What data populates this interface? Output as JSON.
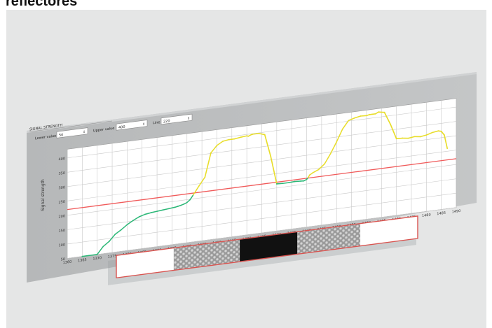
{
  "page": {
    "title": "reflectores"
  },
  "panel": {
    "title": "SIGNAL STRENGTH",
    "lower_label": "Lower value",
    "lower_value": "50",
    "upper_label": "Upper value",
    "upper_value": "400",
    "line_label": "Line",
    "line_value": "220"
  },
  "colors": {
    "below_line": "#2db878",
    "above_line": "#e8dd2a",
    "threshold": "#f05a5a",
    "panel": "#b9bbbc",
    "plot_bg": "#ffffff",
    "grid": "#c9c9c9",
    "strip_border": "#d9534f",
    "strip_black": "#111111"
  },
  "chart_data": {
    "type": "line",
    "ylabel": "Signal strength",
    "xlabel": "",
    "x_ticks": [
      1360,
      1365,
      1370,
      1375,
      1380,
      1385,
      1390,
      1395,
      1400,
      1405,
      1410,
      1415,
      1420,
      1425,
      1430,
      1435,
      1440,
      1445,
      1450,
      1455,
      1460,
      1465,
      1470,
      1475,
      1480,
      1485,
      1490
    ],
    "y_ticks": [
      50,
      100,
      150,
      200,
      250,
      300,
      350,
      400
    ],
    "xlim": [
      1360,
      1490
    ],
    "ylim": [
      50,
      430
    ],
    "threshold": 220,
    "series": [
      {
        "x": [
          1365,
          1370,
          1372,
          1374,
          1376,
          1378,
          1380,
          1382,
          1384,
          1386,
          1388,
          1390,
          1392,
          1394,
          1396,
          1397,
          1398,
          1399,
          1400,
          1401,
          1402,
          1404,
          1406,
          1408,
          1410,
          1412,
          1414,
          1416,
          1418,
          1420,
          1420.5,
          1421,
          1421.5,
          1422,
          1424,
          1426,
          1428,
          1430,
          1432,
          1434,
          1436,
          1438,
          1439,
          1440,
          1440.5,
          1441,
          1442,
          1444,
          1446,
          1448,
          1450,
          1452,
          1454,
          1456,
          1458,
          1460,
          1461,
          1462,
          1463,
          1464,
          1466,
          1468,
          1470,
          1472,
          1474,
          1476,
          1478,
          1480,
          1482,
          1484,
          1485,
          1486,
          1487
        ],
        "y": [
          50,
          50,
          75,
          90,
          112,
          125,
          140,
          152,
          162,
          168,
          171,
          173,
          175,
          177,
          179,
          181,
          183,
          186,
          190,
          198,
          212,
          242,
          270,
          352,
          375,
          387,
          390,
          390,
          393,
          395,
          393,
          395,
          397,
          398,
          398,
          391,
          312,
          214,
          213,
          213,
          214,
          213,
          212,
          216,
          222,
          230,
          236,
          245,
          262,
          295,
          333,
          375,
          402,
          408,
          412,
          411,
          413,
          413,
          413,
          418,
          414,
          370,
          317,
          316,
          313,
          316,
          313,
          316,
          322,
          325,
          322,
          308,
          260
        ]
      }
    ]
  },
  "strip": {
    "segments": [
      {
        "type": "white",
        "fraction": 0.2
      },
      {
        "type": "hex",
        "fraction": 0.23
      },
      {
        "type": "black",
        "fraction": 0.2
      },
      {
        "type": "hex",
        "fraction": 0.22
      },
      {
        "type": "white",
        "fraction": 0.2
      }
    ]
  }
}
